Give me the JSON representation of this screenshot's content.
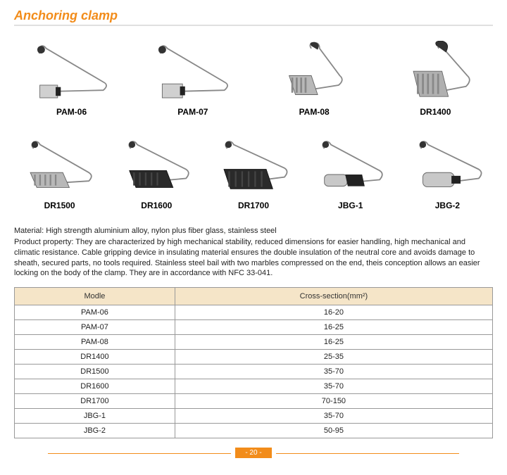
{
  "title": "Anchoring clamp",
  "products_row1": [
    {
      "label": "PAM-06"
    },
    {
      "label": "PAM-07"
    },
    {
      "label": "PAM-08"
    },
    {
      "label": "DR1400"
    }
  ],
  "products_row2": [
    {
      "label": "DR1500"
    },
    {
      "label": "DR1600"
    },
    {
      "label": "DR1700"
    },
    {
      "label": "JBG-1"
    },
    {
      "label": "JBG-2"
    }
  ],
  "desc": {
    "line1": "Material: High strength aluminium alloy, nylon plus fiber glass, stainless steel",
    "line2": "Product property: They are characterized by high mechanical stability, reduced dimensions for easier handling, high mechanical and climatic resistance. Cable gripping device in insulating material ensures the double insulation of the neutral core and avoids damage to sheath, secured parts, no tools required. Stainless steel bail with two marbles compressed on the end, theis conception allows an easier locking on the body of the clamp. They are in accordance with NFC 33-041."
  },
  "table": {
    "headers": [
      "Modle",
      "Cross-section(mm²)"
    ],
    "rows": [
      [
        "PAM-06",
        "16-20"
      ],
      [
        "PAM-07",
        "16-25"
      ],
      [
        "PAM-08",
        "16-25"
      ],
      [
        "DR1400",
        "25-35"
      ],
      [
        "DR1500",
        "35-70"
      ],
      [
        "DR1600",
        "35-70"
      ],
      [
        "DR1700",
        "70-150"
      ],
      [
        "JBG-1",
        "35-70"
      ],
      [
        "JBG-2",
        "50-95"
      ]
    ]
  },
  "pagenum": "- 20 -",
  "colors": {
    "accent": "#f28c1a",
    "table_header_bg": "#f5e5c8",
    "border": "#999999",
    "text": "#222222"
  }
}
